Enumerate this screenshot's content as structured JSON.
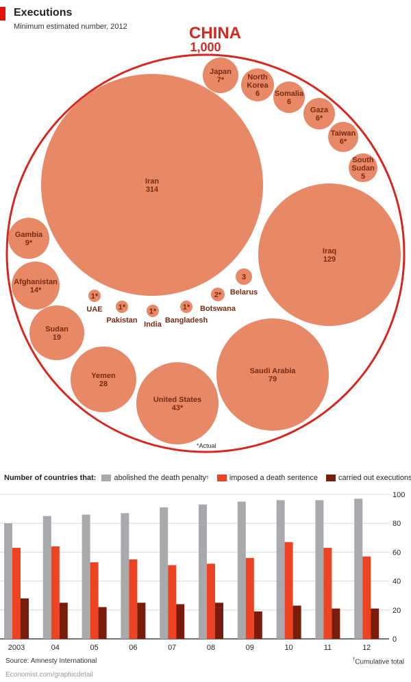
{
  "header": {
    "title": "Executions",
    "subtitle": "Minimum estimated number, 2012"
  },
  "colors": {
    "accent": "#e3120b",
    "bubble": "#e78867",
    "bubble_text": "#7a2a10",
    "ring": "#d7261e",
    "abolished": "#a7a9ac",
    "imposed": "#ee4323",
    "executed": "#7a1c0c"
  },
  "chart_data": [
    {
      "type": "bubble",
      "title": "",
      "container": {
        "label": "CHINA",
        "value": "1,000"
      },
      "bubbles": [
        {
          "country": "Iran",
          "value": "314"
        },
        {
          "country": "Iraq",
          "value": "129"
        },
        {
          "country": "Saudi Arabia",
          "value": "79"
        },
        {
          "country": "United States",
          "value": "43*"
        },
        {
          "country": "Yemen",
          "value": "28"
        },
        {
          "country": "Sudan",
          "value": "19"
        },
        {
          "country": "Afghanistan",
          "value": "14*"
        },
        {
          "country": "Gambia",
          "value": "9*"
        },
        {
          "country": "Japan",
          "value": "7*"
        },
        {
          "country": "North Korea",
          "value": "6"
        },
        {
          "country": "Somalia",
          "value": "6"
        },
        {
          "country": "Gaza",
          "value": "6*"
        },
        {
          "country": "Taiwan",
          "value": "6*"
        },
        {
          "country": "South Sudan",
          "value": "5"
        },
        {
          "country": "Belarus",
          "value": "3"
        },
        {
          "country": "Botswana",
          "value": "2*"
        },
        {
          "country": "Bangladesh",
          "value": "1*"
        },
        {
          "country": "India",
          "value": "1*"
        },
        {
          "country": "Pakistan",
          "value": "1*"
        },
        {
          "country": "UAE",
          "value": "1*"
        }
      ],
      "note": "*Actual"
    },
    {
      "type": "bar",
      "title": "Number of countries that:",
      "categories": [
        "2003",
        "04",
        "05",
        "06",
        "07",
        "08",
        "09",
        "10",
        "11",
        "12"
      ],
      "series": [
        {
          "name": "abolished the death penalty",
          "values": [
            80,
            85,
            86,
            87,
            91,
            93,
            95,
            96,
            96,
            97
          ]
        },
        {
          "name": "imposed a death sentence",
          "values": [
            63,
            64,
            53,
            55,
            51,
            52,
            56,
            67,
            63,
            57
          ]
        },
        {
          "name": "carried out executions",
          "values": [
            28,
            25,
            22,
            25,
            24,
            25,
            19,
            23,
            21,
            21
          ]
        }
      ],
      "ylim": [
        0,
        100
      ],
      "yticks": [
        0,
        20,
        40,
        60,
        80,
        100
      ],
      "ytick_labels": [
        "0",
        "20",
        "40",
        "60",
        "80",
        "100"
      ],
      "grid": true,
      "legend": "top",
      "footnote_marker": "†"
    }
  ],
  "footer": {
    "source": "Source: Amnesty International",
    "footnote": "Cumulative total",
    "footnote_marker": "†",
    "credit": "Economist.com/graphicdetail"
  }
}
